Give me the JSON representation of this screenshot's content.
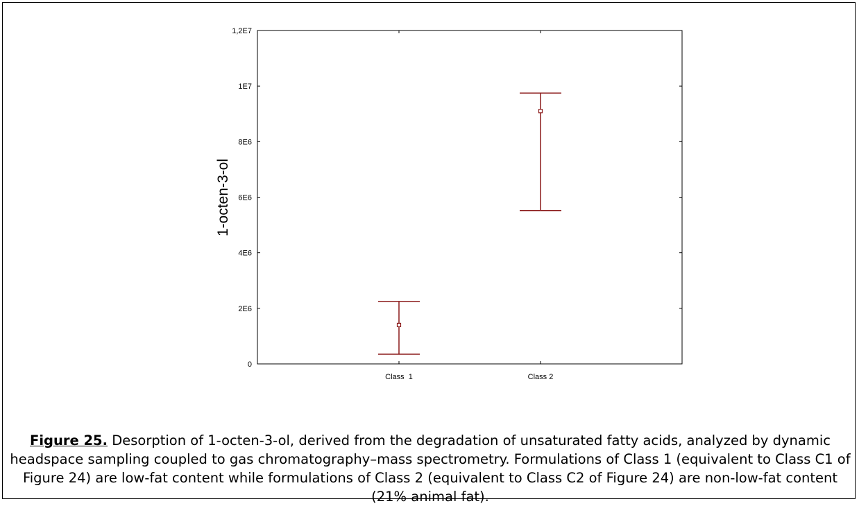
{
  "chart_data": {
    "type": "scatter",
    "subtype": "means-with-error-bars",
    "xlabel": "",
    "ylabel": "1-octen-3-ol",
    "categories": [
      "Class  1",
      "Class 2"
    ],
    "yticks": [
      "0",
      "2E6",
      "4E6",
      "6E6",
      "8E6",
      "1E7",
      "1,2E7"
    ],
    "ytick_values": [
      0,
      2000000,
      4000000,
      6000000,
      8000000,
      10000000,
      12000000
    ],
    "ylim": [
      0,
      12000000
    ],
    "points": [
      {
        "category": "Class  1",
        "mean": 1400000,
        "lower": 350000,
        "upper": 2250000
      },
      {
        "category": "Class 2",
        "mean": 9100000,
        "lower": 5520000,
        "upper": 9750000
      }
    ],
    "color": "#8b1a1a",
    "grid": false
  },
  "caption": {
    "label": "Figure 25.",
    "text": " Desorption of 1-octen-3-ol, derived from the degradation of unsaturated fatty acids, analyzed by dynamic headspace sampling coupled to gas chromatography–mass spectrometry. Formulations of Class 1 (equivalent to Class C1 of Figure 24) are low-fat content while formulations of Class 2 (equivalent to Class C2 of Figure 24) are non-low-fat content (21% animal fat)."
  }
}
